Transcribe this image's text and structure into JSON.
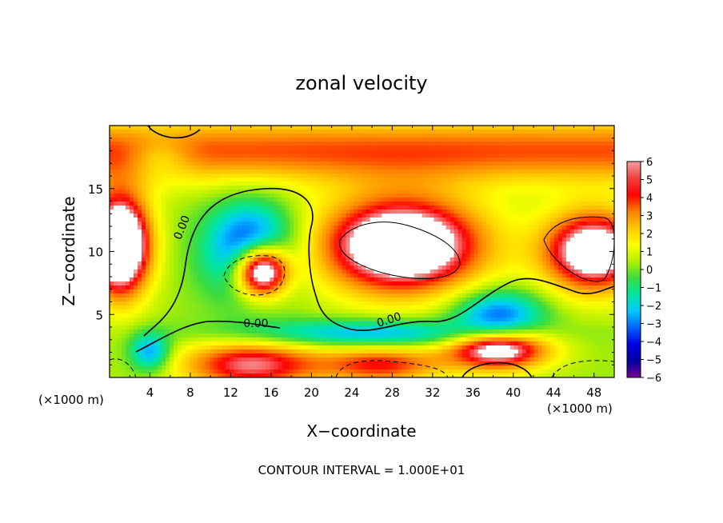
{
  "chart_data": {
    "type": "heatmap",
    "title": "zonal velocity",
    "xlabel": "X−coordinate",
    "ylabel": "Z−coordinate",
    "x_unit_left": "(×1000 m)",
    "x_unit_right": "(×1000 m)",
    "footnote": "CONTOUR INTERVAL = 1.000E+01",
    "xlim": [
      0,
      50
    ],
    "ylim": [
      0,
      20
    ],
    "x_ticks": [
      4,
      8,
      12,
      16,
      20,
      24,
      28,
      32,
      36,
      40,
      44,
      48
    ],
    "x_tick_labels": [
      "4",
      "8",
      "12",
      "16",
      "20",
      "24",
      "28",
      "32",
      "36",
      "40",
      "44",
      "48"
    ],
    "y_ticks": [
      5,
      10,
      15
    ],
    "y_tick_labels": [
      "5",
      "10",
      "15"
    ],
    "colorbar": {
      "min": -6,
      "max": 6,
      "labels": [
        "6",
        "5",
        "4",
        "3",
        "2",
        "1",
        "0",
        "−1",
        "−2",
        "−3",
        "−4",
        "−5",
        "−6"
      ],
      "colors": [
        "#f5a0a0",
        "#f04040",
        "#ff0000",
        "#ff7f00",
        "#ffc800",
        "#ffff00",
        "#b4f000",
        "#3cdc3c",
        "#00e6a0",
        "#00c8ff",
        "#0064ff",
        "#0000e6",
        "#00009f",
        "#780096"
      ]
    },
    "contour_labels": [
      {
        "text": "0.00",
        "x": 7.5,
        "y": 11.8,
        "angle": -68
      },
      {
        "text": "0.00",
        "x": 14.5,
        "y": 4.0,
        "angle": 0
      },
      {
        "text": "0.00",
        "x": 27.8,
        "y": 4.3,
        "angle": -18
      }
    ],
    "grid": false,
    "legend_position": "right"
  }
}
